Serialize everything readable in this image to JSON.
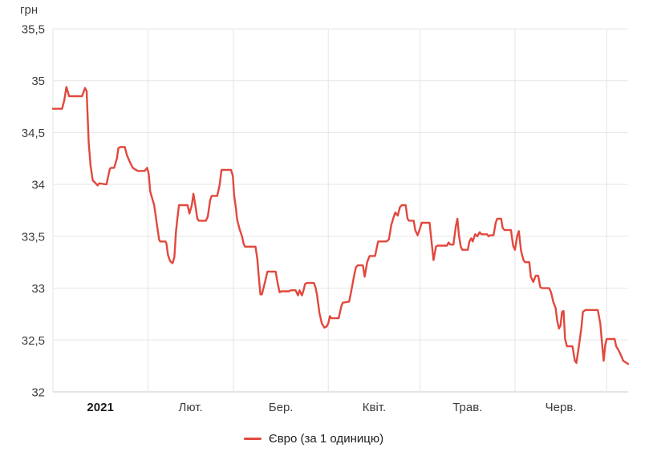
{
  "unit_label": "грн",
  "legend": {
    "series_label": "Євро (за 1 одиницю)"
  },
  "chart_data": {
    "type": "line",
    "title": "",
    "xlabel": "",
    "ylabel": "грн",
    "grid": true,
    "legend_position": "bottom",
    "ylim": [
      32,
      35.5
    ],
    "x_domain": [
      1,
      189
    ],
    "x_domain_note": "day index, 1 = 1 Jan 2021",
    "colors": {
      "line": "#e2483d",
      "grid": "#e6e6e6",
      "axis": "#c9c9c9",
      "text": "#3d3d3d",
      "text_strong": "#1a1a1a"
    },
    "y_ticks": [
      {
        "label": "35,5",
        "value": 35.5
      },
      {
        "label": "35",
        "value": 35
      },
      {
        "label": "34,5",
        "value": 34.5
      },
      {
        "label": "34",
        "value": 34
      },
      {
        "label": "33,5",
        "value": 33.5
      },
      {
        "label": "33",
        "value": 33
      },
      {
        "label": "32,5",
        "value": 32.5
      },
      {
        "label": "32",
        "value": 32
      }
    ],
    "x_gridline_days": [
      1,
      32,
      60,
      91,
      121,
      152,
      182
    ],
    "x_ticks": [
      {
        "label": "2021",
        "day": 16.5,
        "bold": true
      },
      {
        "label": "Лют.",
        "day": 46,
        "bold": false
      },
      {
        "label": "Бер.",
        "day": 75.5,
        "bold": false
      },
      {
        "label": "Квіт.",
        "day": 106,
        "bold": false
      },
      {
        "label": "Трав.",
        "day": 136.5,
        "bold": false
      },
      {
        "label": "Черв.",
        "day": 167,
        "bold": false
      }
    ],
    "series": [
      {
        "name": "Євро (за 1 одиницю)",
        "color": "#e2483d",
        "points": [
          [
            1,
            34.73
          ],
          [
            4,
            34.73
          ],
          [
            4.7,
            34.81
          ],
          [
            5.4,
            34.94
          ],
          [
            6.3,
            34.85
          ],
          [
            10.5,
            34.85
          ],
          [
            11.5,
            34.93
          ],
          [
            12,
            34.9
          ],
          [
            12.7,
            34.4
          ],
          [
            13.3,
            34.18
          ],
          [
            14,
            34.04
          ],
          [
            14.7,
            34.02
          ],
          [
            15.6,
            33.99
          ],
          [
            16.1,
            34.01
          ],
          [
            18.5,
            34
          ],
          [
            19.6,
            34.15
          ],
          [
            20,
            34.16
          ],
          [
            21,
            34.16
          ],
          [
            21.9,
            34.25
          ],
          [
            22.4,
            34.35
          ],
          [
            23,
            34.36
          ],
          [
            24.5,
            34.36
          ],
          [
            25.2,
            34.28
          ],
          [
            26.1,
            34.22
          ],
          [
            27.1,
            34.16
          ],
          [
            28.1,
            34.14
          ],
          [
            28.8,
            34.13
          ],
          [
            31,
            34.13
          ],
          [
            31.8,
            34.16
          ],
          [
            32.3,
            34.1
          ],
          [
            32.8,
            33.93
          ],
          [
            34.1,
            33.8
          ],
          [
            34.9,
            33.63
          ],
          [
            35.7,
            33.47
          ],
          [
            36,
            33.45
          ],
          [
            37.8,
            33.45
          ],
          [
            38.1,
            33.43
          ],
          [
            38.6,
            33.32
          ],
          [
            39.3,
            33.26
          ],
          [
            40.1,
            33.24
          ],
          [
            40.7,
            33.3
          ],
          [
            41.2,
            33.54
          ],
          [
            41.7,
            33.68
          ],
          [
            42.2,
            33.8
          ],
          [
            45,
            33.8
          ],
          [
            45.6,
            33.72
          ],
          [
            46.4,
            33.8
          ],
          [
            46.9,
            33.91
          ],
          [
            47.7,
            33.77
          ],
          [
            48.2,
            33.67
          ],
          [
            48.7,
            33.65
          ],
          [
            51,
            33.65
          ],
          [
            51.6,
            33.69
          ],
          [
            52.4,
            33.85
          ],
          [
            52.9,
            33.89
          ],
          [
            54.7,
            33.89
          ],
          [
            55.5,
            34
          ],
          [
            56.1,
            34.14
          ],
          [
            59.2,
            34.14
          ],
          [
            59.8,
            34.08
          ],
          [
            60.2,
            33.9
          ],
          [
            60.8,
            33.77
          ],
          [
            61.2,
            33.66
          ],
          [
            62,
            33.57
          ],
          [
            62.8,
            33.5
          ],
          [
            63.3,
            33.43
          ],
          [
            63.8,
            33.4
          ],
          [
            67.2,
            33.4
          ],
          [
            67.8,
            33.28
          ],
          [
            68.3,
            33.1
          ],
          [
            68.8,
            32.94
          ],
          [
            69.3,
            32.94
          ],
          [
            69.8,
            33
          ],
          [
            70.4,
            33.07
          ],
          [
            71.1,
            33.16
          ],
          [
            73.8,
            33.16
          ],
          [
            74.5,
            33.04
          ],
          [
            75.1,
            32.96
          ],
          [
            75.7,
            32.97
          ],
          [
            78.2,
            32.97
          ],
          [
            78.7,
            32.98
          ],
          [
            80.3,
            32.98
          ],
          [
            81.1,
            32.93
          ],
          [
            81.6,
            32.98
          ],
          [
            82.4,
            32.93
          ],
          [
            82.9,
            32.98
          ],
          [
            83.4,
            33.04
          ],
          [
            83.9,
            33.05
          ],
          [
            86.3,
            33.05
          ],
          [
            86.8,
            33.01
          ],
          [
            87.3,
            32.94
          ],
          [
            88.1,
            32.76
          ],
          [
            88.9,
            32.66
          ],
          [
            89.7,
            32.62
          ],
          [
            90.4,
            32.63
          ],
          [
            91,
            32.66
          ],
          [
            91.5,
            32.73
          ],
          [
            92,
            32.71
          ],
          [
            94.4,
            32.71
          ],
          [
            95.2,
            32.82
          ],
          [
            95.7,
            32.86
          ],
          [
            97.8,
            32.87
          ],
          [
            98.5,
            32.97
          ],
          [
            99.3,
            33.1
          ],
          [
            100,
            33.2
          ],
          [
            100.6,
            33.22
          ],
          [
            102.3,
            33.22
          ],
          [
            102.9,
            33.11
          ],
          [
            103.7,
            33.25
          ],
          [
            104.5,
            33.31
          ],
          [
            106.3,
            33.31
          ],
          [
            106.9,
            33.4
          ],
          [
            107.3,
            33.45
          ],
          [
            110,
            33.45
          ],
          [
            110.8,
            33.47
          ],
          [
            111.6,
            33.61
          ],
          [
            112.4,
            33.69
          ],
          [
            112.9,
            33.73
          ],
          [
            113.7,
            33.7
          ],
          [
            114.4,
            33.78
          ],
          [
            115,
            33.8
          ],
          [
            116.3,
            33.8
          ],
          [
            116.9,
            33.67
          ],
          [
            117.4,
            33.65
          ],
          [
            118.9,
            33.65
          ],
          [
            119.4,
            33.56
          ],
          [
            120.2,
            33.51
          ],
          [
            121,
            33.58
          ],
          [
            121.5,
            33.63
          ],
          [
            124.1,
            33.63
          ],
          [
            124.7,
            33.46
          ],
          [
            125.4,
            33.27
          ],
          [
            126.2,
            33.4
          ],
          [
            126.7,
            33.41
          ],
          [
            129.8,
            33.41
          ],
          [
            130.3,
            33.44
          ],
          [
            130.9,
            33.42
          ],
          [
            131.9,
            33.42
          ],
          [
            132.7,
            33.6
          ],
          [
            133.2,
            33.67
          ],
          [
            133.7,
            33.51
          ],
          [
            134.3,
            33.4
          ],
          [
            134.8,
            33.37
          ],
          [
            136.6,
            33.37
          ],
          [
            137.1,
            33.45
          ],
          [
            137.7,
            33.48
          ],
          [
            138.2,
            33.45
          ],
          [
            139,
            33.52
          ],
          [
            139.7,
            33.5
          ],
          [
            140.5,
            33.54
          ],
          [
            141,
            33.52
          ],
          [
            142.9,
            33.52
          ],
          [
            143.4,
            33.5
          ],
          [
            143.9,
            33.51
          ],
          [
            145,
            33.51
          ],
          [
            145.7,
            33.63
          ],
          [
            146.2,
            33.67
          ],
          [
            147.5,
            33.67
          ],
          [
            148,
            33.58
          ],
          [
            148.6,
            33.56
          ],
          [
            150.7,
            33.56
          ],
          [
            151.4,
            33.41
          ],
          [
            152,
            33.37
          ],
          [
            152.7,
            33.5
          ],
          [
            153.3,
            33.55
          ],
          [
            154,
            33.36
          ],
          [
            154.8,
            33.27
          ],
          [
            155.3,
            33.25
          ],
          [
            156.7,
            33.25
          ],
          [
            157.2,
            33.11
          ],
          [
            158,
            33.06
          ],
          [
            158.8,
            33.12
          ],
          [
            159.6,
            33.12
          ],
          [
            160.3,
            33.01
          ],
          [
            160.9,
            33
          ],
          [
            163.2,
            33
          ],
          [
            163.8,
            32.96
          ],
          [
            164.5,
            32.87
          ],
          [
            165.3,
            32.81
          ],
          [
            165.8,
            32.69
          ],
          [
            166.4,
            32.61
          ],
          [
            166.9,
            32.64
          ],
          [
            167.4,
            32.77
          ],
          [
            167.9,
            32.78
          ],
          [
            168.4,
            32.51
          ],
          [
            169,
            32.44
          ],
          [
            170.8,
            32.44
          ],
          [
            171.6,
            32.3
          ],
          [
            172.1,
            32.28
          ],
          [
            172.9,
            32.44
          ],
          [
            173.7,
            32.61
          ],
          [
            174.2,
            32.77
          ],
          [
            175,
            32.79
          ],
          [
            179.1,
            32.79
          ],
          [
            179.9,
            32.66
          ],
          [
            180.4,
            32.49
          ],
          [
            181,
            32.3
          ],
          [
            181.5,
            32.45
          ],
          [
            182,
            32.51
          ],
          [
            184.6,
            32.51
          ],
          [
            185.1,
            32.44
          ],
          [
            185.9,
            32.4
          ],
          [
            186.7,
            32.35
          ],
          [
            187.4,
            32.3
          ],
          [
            189,
            32.27
          ]
        ]
      }
    ]
  }
}
